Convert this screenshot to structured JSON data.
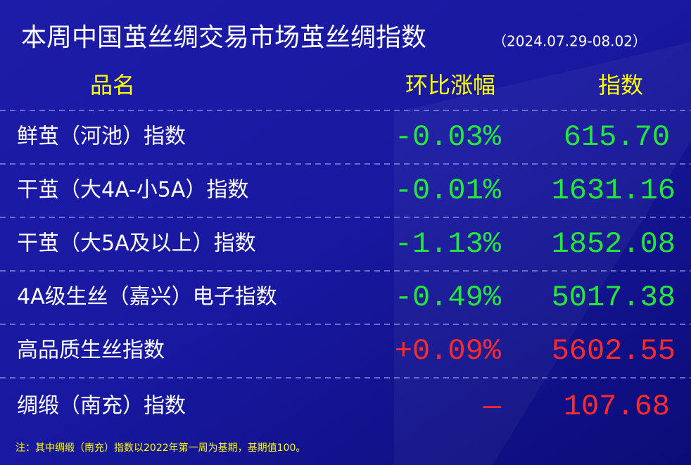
{
  "header": {
    "title": "本周中国茧丝绸交易市场茧丝绸指数",
    "date_range": "（2024.07.29-08.02）"
  },
  "table": {
    "columns": [
      "品名",
      "环比涨幅",
      "指数"
    ],
    "rows": [
      [
        "鲜茧（河池）指数",
        "-0.03%",
        "615.70"
      ],
      [
        "干茧（大4A-小5A）指数",
        "-0.01%",
        "1631.16"
      ],
      [
        "干茧（大5A及以上）指数",
        "-1.13%",
        "1852.08"
      ],
      [
        "4A级生丝（嘉兴）电子指数",
        "-0.49%",
        "5017.38"
      ],
      [
        "高品质生丝指数",
        "+0.09%",
        "5602.55"
      ],
      [
        "绸缎（南充）指数",
        "—",
        "107.68"
      ]
    ],
    "row_colors": [
      "#22e83a",
      "#22e83a",
      "#22e83a",
      "#22e83a",
      "#ff2a2a",
      "#ff2a2a"
    ]
  },
  "footnote": "注：其中绸缎（南充）指数以2022年第一周为基期，基期值100。"
}
